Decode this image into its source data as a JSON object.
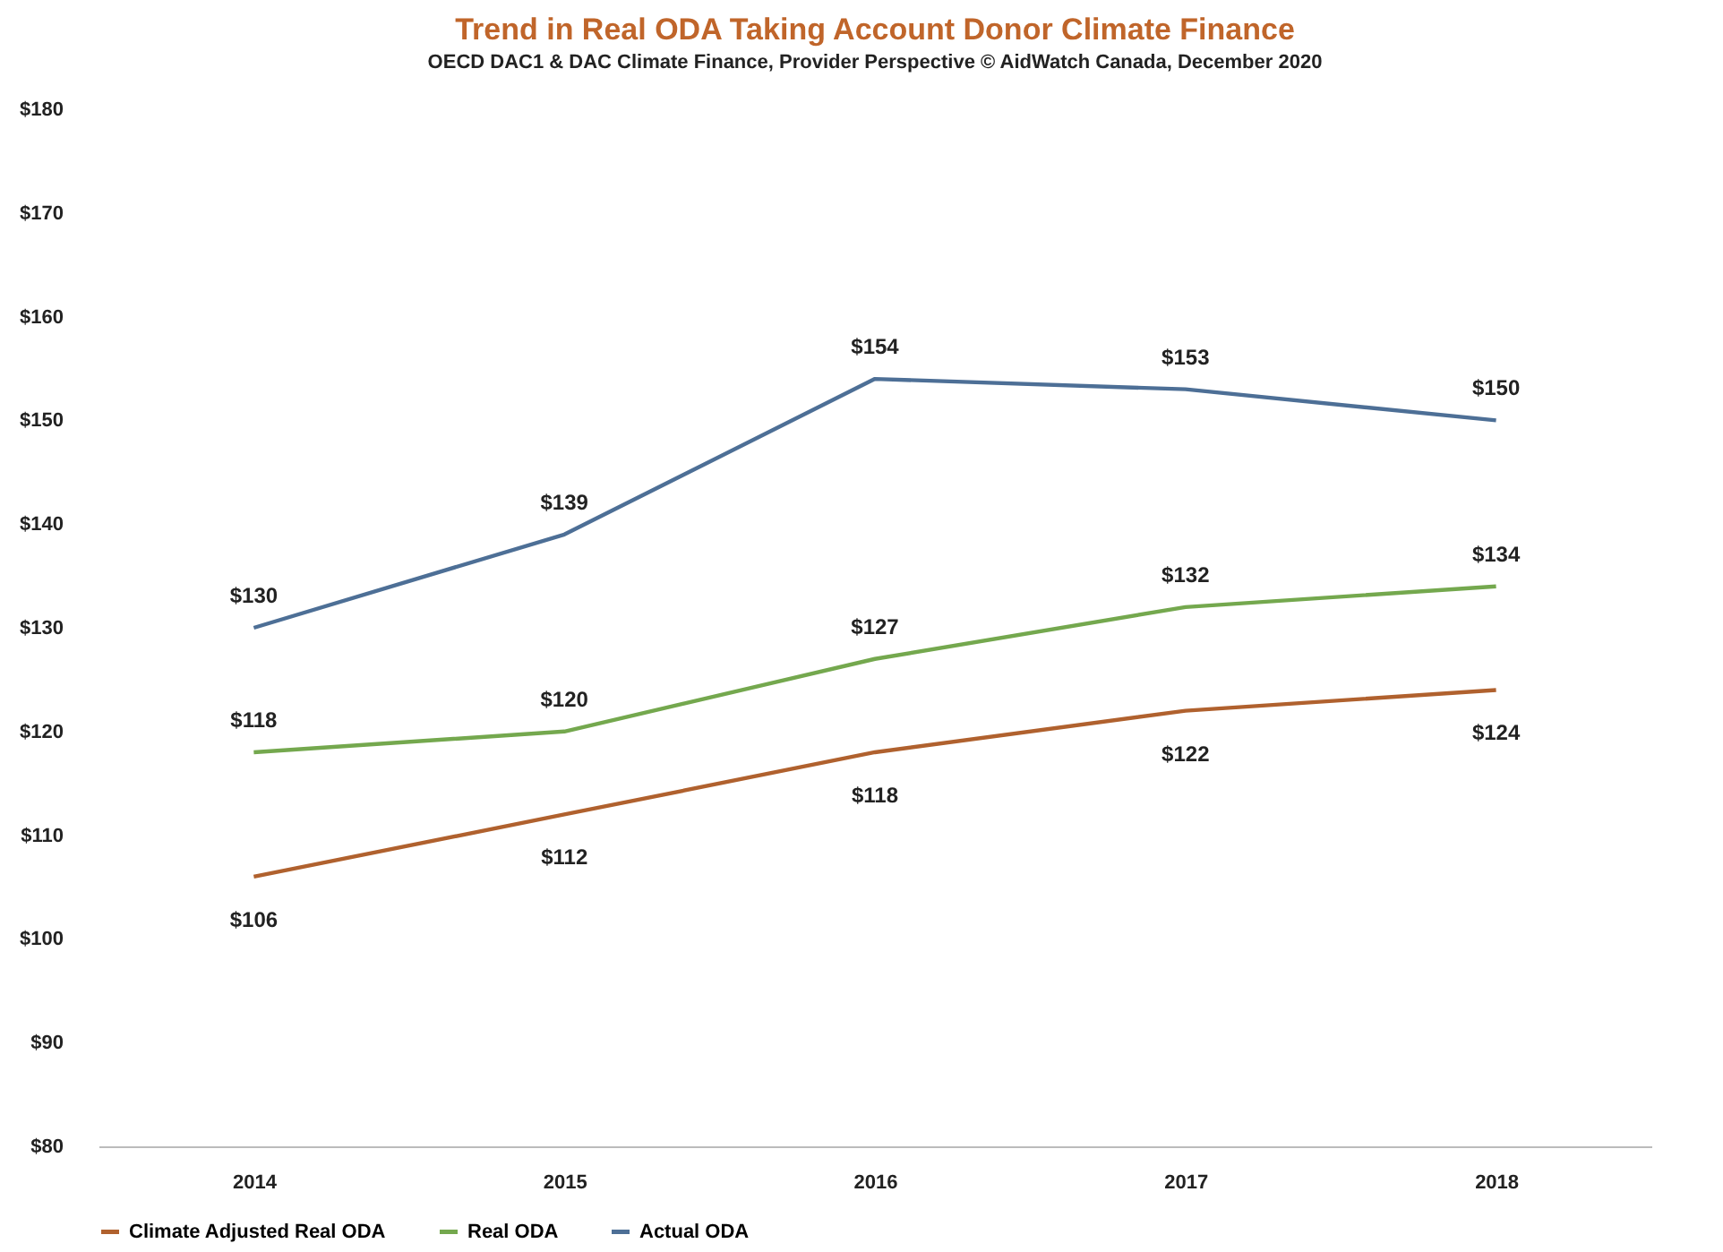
{
  "chart_data": {
    "type": "line",
    "title": "Trend in Real ODA Taking Account Donor Climate Finance",
    "subtitle": "OECD DAC1 & DAC Climate Finance, Provider Perspective     © AidWatch Canada, December 2020",
    "categories": [
      "2014",
      "2015",
      "2016",
      "2017",
      "2018"
    ],
    "series": [
      {
        "name": "Climate Adjusted Real ODA",
        "color": "#b0612e",
        "values": [
          106,
          112,
          118,
          122,
          124
        ],
        "value_labels": [
          "$106",
          "$112",
          "$118",
          "$122",
          "$124"
        ]
      },
      {
        "name": "Real ODA",
        "color": "#74a84e",
        "values": [
          118,
          120,
          127,
          132,
          134
        ],
        "value_labels": [
          "$118",
          "$120",
          "$127",
          "$132",
          "$134"
        ]
      },
      {
        "name": "Actual ODA",
        "color": "#4d6f96",
        "values": [
          130,
          139,
          154,
          153,
          150
        ],
        "value_labels": [
          "$130",
          "$139",
          "$154",
          "$153",
          "$150"
        ]
      }
    ],
    "ylim": [
      80,
      180
    ],
    "yticks": [
      {
        "value": 80,
        "label": "$80"
      },
      {
        "value": 90,
        "label": "$90"
      },
      {
        "value": 100,
        "label": "$100"
      },
      {
        "value": 110,
        "label": "$110"
      },
      {
        "value": 120,
        "label": "$120"
      },
      {
        "value": 130,
        "label": "$130"
      },
      {
        "value": 140,
        "label": "$140"
      },
      {
        "value": 150,
        "label": "$150"
      },
      {
        "value": 160,
        "label": "$160"
      },
      {
        "value": 170,
        "label": "$170"
      },
      {
        "value": 180,
        "label": "$180"
      }
    ],
    "grid": false,
    "legend": "bottom",
    "marker": "none",
    "line_style": "solid"
  }
}
